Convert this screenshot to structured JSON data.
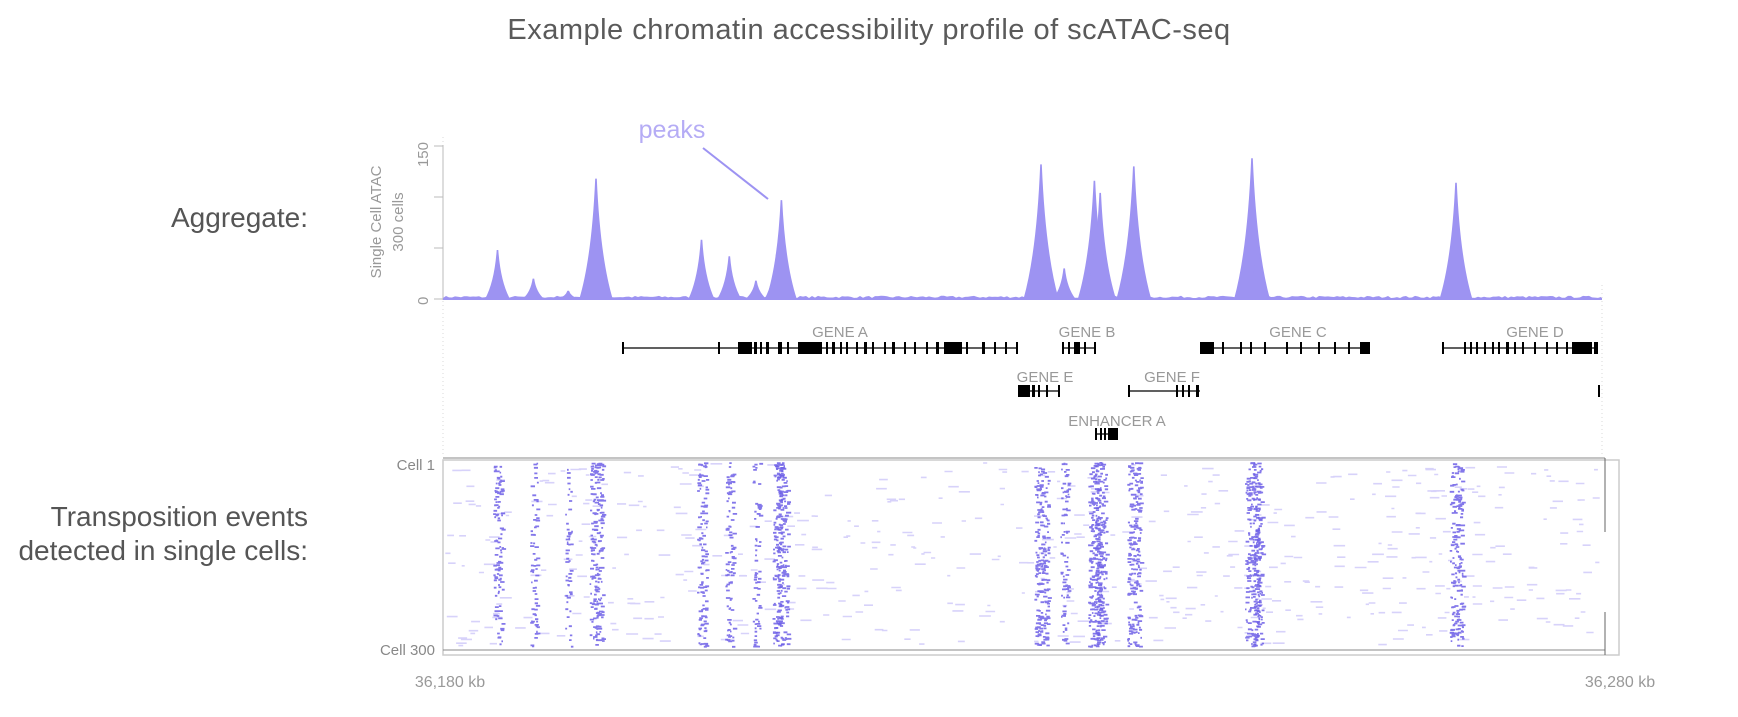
{
  "title": "Example chromatin accessibility profile of scATAC-seq",
  "labels": {
    "aggregate": "Aggregate:",
    "transposition_line1": "Transposition events",
    "transposition_line2": "detected in single cells:"
  },
  "track": {
    "ylabel_line1": "Single Cell ATAC",
    "ylabel_line2": "300 cells",
    "ytick_top": "150",
    "ytick_bottom": "0",
    "annotation": "peaks"
  },
  "genes": {
    "gene_a": "GENE A",
    "gene_b": "GENE B",
    "gene_c": "GENE C",
    "gene_d": "GENE D",
    "gene_e": "GENE E",
    "gene_f": "GENE F",
    "enhancer_a": "ENHANCER A"
  },
  "cells": {
    "first": "Cell 1",
    "last": "Cell 300"
  },
  "axis": {
    "start": "36,180 kb",
    "end": "36,280 kb"
  },
  "colors": {
    "signal": "#9d93f2",
    "annotation": "#b5acf5",
    "gene": "#000000"
  },
  "chart_data": {
    "type": "area",
    "x_range_kb": [
      36180,
      36280
    ],
    "ylim": [
      0,
      150
    ],
    "peaks_kb": [
      {
        "x": 36184.7,
        "y": 48
      },
      {
        "x": 36187.8,
        "y": 20
      },
      {
        "x": 36190.8,
        "y": 8
      },
      {
        "x": 36193.2,
        "y": 118
      },
      {
        "x": 36202.3,
        "y": 58
      },
      {
        "x": 36204.7,
        "y": 42
      },
      {
        "x": 36207.0,
        "y": 18
      },
      {
        "x": 36208.8,
        "y": 45
      },
      {
        "x": 36209.2,
        "y": 97
      },
      {
        "x": 36231.6,
        "y": 132
      },
      {
        "x": 36233.6,
        "y": 30
      },
      {
        "x": 36236.2,
        "y": 116
      },
      {
        "x": 36236.7,
        "y": 104
      },
      {
        "x": 36239.6,
        "y": 130
      },
      {
        "x": 36249.8,
        "y": 138
      },
      {
        "x": 36250.3,
        "y": 52
      },
      {
        "x": 36267.4,
        "y": 114
      }
    ]
  }
}
